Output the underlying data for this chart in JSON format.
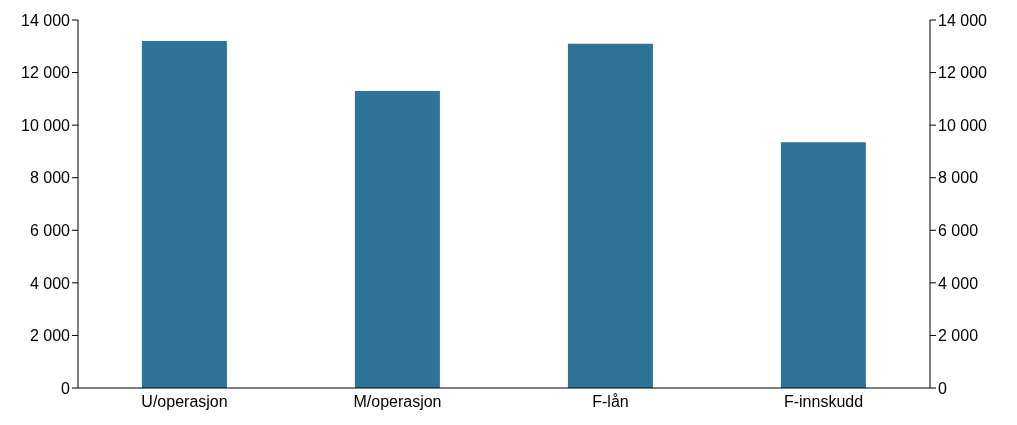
{
  "chart_data": {
    "type": "bar",
    "categories": [
      "U/operasjon",
      "M/operasjon",
      "F-lån",
      "F-innskudd"
    ],
    "values": [
      13200,
      11300,
      13100,
      9350
    ],
    "color": "#2e7499",
    "ylim": [
      0,
      14000
    ],
    "yticks": [
      {
        "value": 0,
        "label": "0"
      },
      {
        "value": 2000,
        "label": "2 000"
      },
      {
        "value": 4000,
        "label": "4 000"
      },
      {
        "value": 6000,
        "label": "6 000"
      },
      {
        "value": 8000,
        "label": "8 000"
      },
      {
        "value": 10000,
        "label": "10 000"
      },
      {
        "value": 12000,
        "label": "12 000"
      },
      {
        "value": 14000,
        "label": "14 000"
      }
    ],
    "y2lim": [
      0,
      14000
    ],
    "y2ticks": [
      {
        "value": 0,
        "label": "0"
      },
      {
        "value": 2000,
        "label": "2 000"
      },
      {
        "value": 4000,
        "label": "4 000"
      },
      {
        "value": 6000,
        "label": "6 000"
      },
      {
        "value": 8000,
        "label": "8 000"
      },
      {
        "value": 10000,
        "label": "10 000"
      },
      {
        "value": 12000,
        "label": "12 000"
      },
      {
        "value": 14000,
        "label": "14 000"
      }
    ],
    "grid": false
  }
}
